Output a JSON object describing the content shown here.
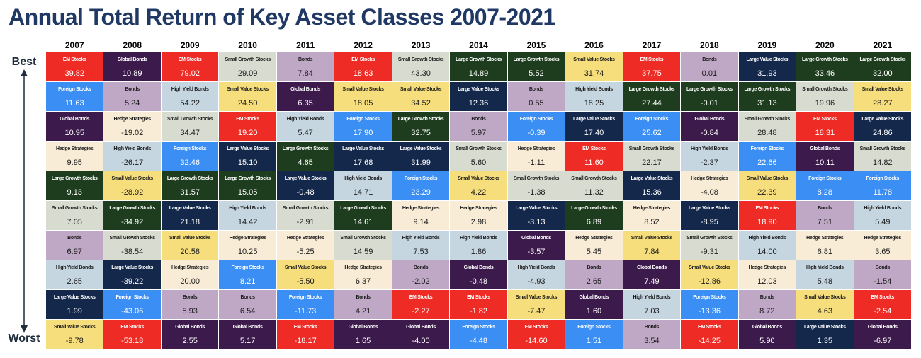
{
  "title": "Annual Total Return of Key Asset Classes 2007-2021",
  "labels": {
    "best": "Best",
    "worst": "Worst"
  },
  "colors": {
    "EM Stocks": "#ee2b24",
    "Global Bonds": "#3c1a4b",
    "Foreign Stocks": "#3b8ef3",
    "Hedge Strategies": "#f9ecd6",
    "Large Growth Stocks": "#1e3d1e",
    "Small Growth Stocks": "#d8dcd0",
    "Bonds": "#bfa8c6",
    "High Yield Bonds": "#c5d6e1",
    "Large Value Stocks": "#14284b",
    "Small Value Stocks": "#f7de7c"
  },
  "chart_data": {
    "type": "table",
    "title": "Annual Total Return of Key Asset Classes 2007-2021",
    "columns": [
      "2007",
      "2008",
      "2009",
      "2010",
      "2011",
      "2012",
      "2013",
      "2014",
      "2015",
      "2016",
      "2017",
      "2018",
      "2019",
      "2020",
      "2021"
    ],
    "cells": [
      [
        [
          "EM Stocks",
          "39.82"
        ],
        [
          "Foreign Stocks",
          "11.63"
        ],
        [
          "Global Bonds",
          "10.95"
        ],
        [
          "Hedge Strategies",
          "9.95"
        ],
        [
          "Large Growth Stocks",
          "9.13"
        ],
        [
          "Small Growth Stocks",
          "7.05"
        ],
        [
          "Bonds",
          "6.97"
        ],
        [
          "High Yield Bonds",
          "2.65"
        ],
        [
          "Large Value Stocks",
          "1.99"
        ],
        [
          "Small Value Stocks",
          "-9.78"
        ]
      ],
      [
        [
          "Global Bonds",
          "10.89"
        ],
        [
          "Bonds",
          "5.24"
        ],
        [
          "Hedge Strategies",
          "-19.02"
        ],
        [
          "High Yield Bonds",
          "-26.17"
        ],
        [
          "Small Value Stocks",
          "-28.92"
        ],
        [
          "Large Growth Stocks",
          "-34.92"
        ],
        [
          "Small Growth Stocks",
          "-38.54"
        ],
        [
          "Large Value Stocks",
          "-39.22"
        ],
        [
          "Foreign Stocks",
          "-43.06"
        ],
        [
          "EM Stocks",
          "-53.18"
        ]
      ],
      [
        [
          "EM Stocks",
          "79.02"
        ],
        [
          "High Yield Bonds",
          "54.22"
        ],
        [
          "Small Growth Stocks",
          "34.47"
        ],
        [
          "Foreign Stocks",
          "32.46"
        ],
        [
          "Large Growth Stocks",
          "31.57"
        ],
        [
          "Large Value Stocks",
          "21.18"
        ],
        [
          "Small Value Stocks",
          "20.58"
        ],
        [
          "Hedge Strategies",
          "20.00"
        ],
        [
          "Bonds",
          "5.93"
        ],
        [
          "Global Bonds",
          "2.55"
        ]
      ],
      [
        [
          "Small Growth Stocks",
          "29.09"
        ],
        [
          "Small Value Stocks",
          "24.50"
        ],
        [
          "EM Stocks",
          "19.20"
        ],
        [
          "Large Value Stocks",
          "15.10"
        ],
        [
          "Large Growth Stocks",
          "15.05"
        ],
        [
          "High Yield Bonds",
          "14.42"
        ],
        [
          "Hedge Strategies",
          "10.25"
        ],
        [
          "Foreign Stocks",
          "8.21"
        ],
        [
          "Bonds",
          "6.54"
        ],
        [
          "Global Bonds",
          "5.17"
        ]
      ],
      [
        [
          "Bonds",
          "7.84"
        ],
        [
          "Global Bonds",
          "6.35"
        ],
        [
          "High Yield Bonds",
          "5.47"
        ],
        [
          "Large Growth Stocks",
          "4.65"
        ],
        [
          "Large Value Stocks",
          "-0.48"
        ],
        [
          "Small Growth Stocks",
          "-2.91"
        ],
        [
          "Hedge Strategies",
          "-5.25"
        ],
        [
          "Small Value Stocks",
          "-5.50"
        ],
        [
          "Foreign Stocks",
          "-11.73"
        ],
        [
          "EM Stocks",
          "-18.17"
        ]
      ],
      [
        [
          "EM Stocks",
          "18.63"
        ],
        [
          "Small Value Stocks",
          "18.05"
        ],
        [
          "Foreign Stocks",
          "17.90"
        ],
        [
          "Large Value Stocks",
          "17.68"
        ],
        [
          "High Yield Bonds",
          "14.71"
        ],
        [
          "Large Growth Stocks",
          "14.61"
        ],
        [
          "Small Growth Stocks",
          "14.59"
        ],
        [
          "Hedge Strategies",
          "6.37"
        ],
        [
          "Bonds",
          "4.21"
        ],
        [
          "Global Bonds",
          "1.65"
        ]
      ],
      [
        [
          "Small Growth Stocks",
          "43.30"
        ],
        [
          "Small Value Stocks",
          "34.52"
        ],
        [
          "Large Growth Stocks",
          "32.75"
        ],
        [
          "Large Value Stocks",
          "31.99"
        ],
        [
          "Foreign Stocks",
          "23.29"
        ],
        [
          "Hedge Strategies",
          "9.14"
        ],
        [
          "High Yield Bonds",
          "7.53"
        ],
        [
          "Bonds",
          "-2.02"
        ],
        [
          "EM Stocks",
          "-2.27"
        ],
        [
          "Global Bonds",
          "-4.00"
        ]
      ],
      [
        [
          "Large Growth Stocks",
          "14.89"
        ],
        [
          "Large Value Stocks",
          "12.36"
        ],
        [
          "Bonds",
          "5.97"
        ],
        [
          "Small Growth Stocks",
          "5.60"
        ],
        [
          "Small Value Stocks",
          "4.22"
        ],
        [
          "Hedge Strategies",
          "2.98"
        ],
        [
          "High Yield Bonds",
          "1.86"
        ],
        [
          "Global Bonds",
          "-0.48"
        ],
        [
          "EM Stocks",
          "-1.82"
        ],
        [
          "Foreign Stocks",
          "-4.48"
        ]
      ],
      [
        [
          "Large Growth Stocks",
          "5.52"
        ],
        [
          "Bonds",
          "0.55"
        ],
        [
          "Foreign Stocks",
          "-0.39"
        ],
        [
          "Hedge Strategies",
          "-1.11"
        ],
        [
          "Small Growth Stocks",
          "-1.38"
        ],
        [
          "Large Value Stocks",
          "-3.13"
        ],
        [
          "Global Bonds",
          "-3.57"
        ],
        [
          "High Yield Bonds",
          "-4.93"
        ],
        [
          "Small Value Stocks",
          "-7.47"
        ],
        [
          "EM Stocks",
          "-14.60"
        ]
      ],
      [
        [
          "Small Value Stocks",
          "31.74"
        ],
        [
          "High Yield Bonds",
          "18.25"
        ],
        [
          "Large Value Stocks",
          "17.40"
        ],
        [
          "EM Stocks",
          "11.60"
        ],
        [
          "Small Growth Stocks",
          "11.32"
        ],
        [
          "Large Growth Stocks",
          "6.89"
        ],
        [
          "Hedge Strategies",
          "5.45"
        ],
        [
          "Bonds",
          "2.65"
        ],
        [
          "Global Bonds",
          "1.60"
        ],
        [
          "Foreign Stocks",
          "1.51"
        ]
      ],
      [
        [
          "EM Stocks",
          "37.75"
        ],
        [
          "Large Growth Stocks",
          "27.44"
        ],
        [
          "Foreign Stocks",
          "25.62"
        ],
        [
          "Small Growth Stocks",
          "22.17"
        ],
        [
          "Large Value Stocks",
          "15.36"
        ],
        [
          "Hedge Strategies",
          "8.52"
        ],
        [
          "Small Value Stocks",
          "7.84"
        ],
        [
          "Global Bonds",
          "7.49"
        ],
        [
          "High Yield Bonds",
          "7.03"
        ],
        [
          "Bonds",
          "3.54"
        ]
      ],
      [
        [
          "Bonds",
          "0.01"
        ],
        [
          "Large Growth Stocks",
          "-0.01"
        ],
        [
          "Global Bonds",
          "-0.84"
        ],
        [
          "High Yield Bonds",
          "-2.37"
        ],
        [
          "Hedge Strategies",
          "-4.08"
        ],
        [
          "Large Value Stocks",
          "-8.95"
        ],
        [
          "Small Growth Stocks",
          "-9.31"
        ],
        [
          "Small Value Stocks",
          "-12.86"
        ],
        [
          "Foreign Stocks",
          "-13.36"
        ],
        [
          "EM Stocks",
          "-14.25"
        ]
      ],
      [
        [
          "Large Value Stocks",
          "31.93"
        ],
        [
          "Large Growth Stocks",
          "31.13"
        ],
        [
          "Small Growth Stocks",
          "28.48"
        ],
        [
          "Foreign Stocks",
          "22.66"
        ],
        [
          "Small Value Stocks",
          "22.39"
        ],
        [
          "EM Stocks",
          "18.90"
        ],
        [
          "High Yield Bonds",
          "14.00"
        ],
        [
          "Hedge Strategies",
          "12.03"
        ],
        [
          "Bonds",
          "8.72"
        ],
        [
          "Global Bonds",
          "5.90"
        ]
      ],
      [
        [
          "Large Growth Stocks",
          "33.46"
        ],
        [
          "Small Growth Stocks",
          "19.96"
        ],
        [
          "EM Stocks",
          "18.31"
        ],
        [
          "Global Bonds",
          "10.11"
        ],
        [
          "Foreign Stocks",
          "8.28"
        ],
        [
          "Bonds",
          "7.51"
        ],
        [
          "Hedge Strategies",
          "6.81"
        ],
        [
          "High Yield Bonds",
          "5.48"
        ],
        [
          "Small Value Stocks",
          "4.63"
        ],
        [
          "Large Value Stocks",
          "1.35"
        ]
      ],
      [
        [
          "Large Growth Stocks",
          "32.00"
        ],
        [
          "Small Value Stocks",
          "28.27"
        ],
        [
          "Large Value Stocks",
          "24.86"
        ],
        [
          "Small Growth Stocks",
          "14.82"
        ],
        [
          "Foreign Stocks",
          "11.78"
        ],
        [
          "High Yield Bonds",
          "5.49"
        ],
        [
          "Hedge Strategies",
          "3.65"
        ],
        [
          "Bonds",
          "-1.54"
        ],
        [
          "EM Stocks",
          "-2.54"
        ],
        [
          "Global Bonds",
          "-6.97"
        ]
      ]
    ]
  }
}
